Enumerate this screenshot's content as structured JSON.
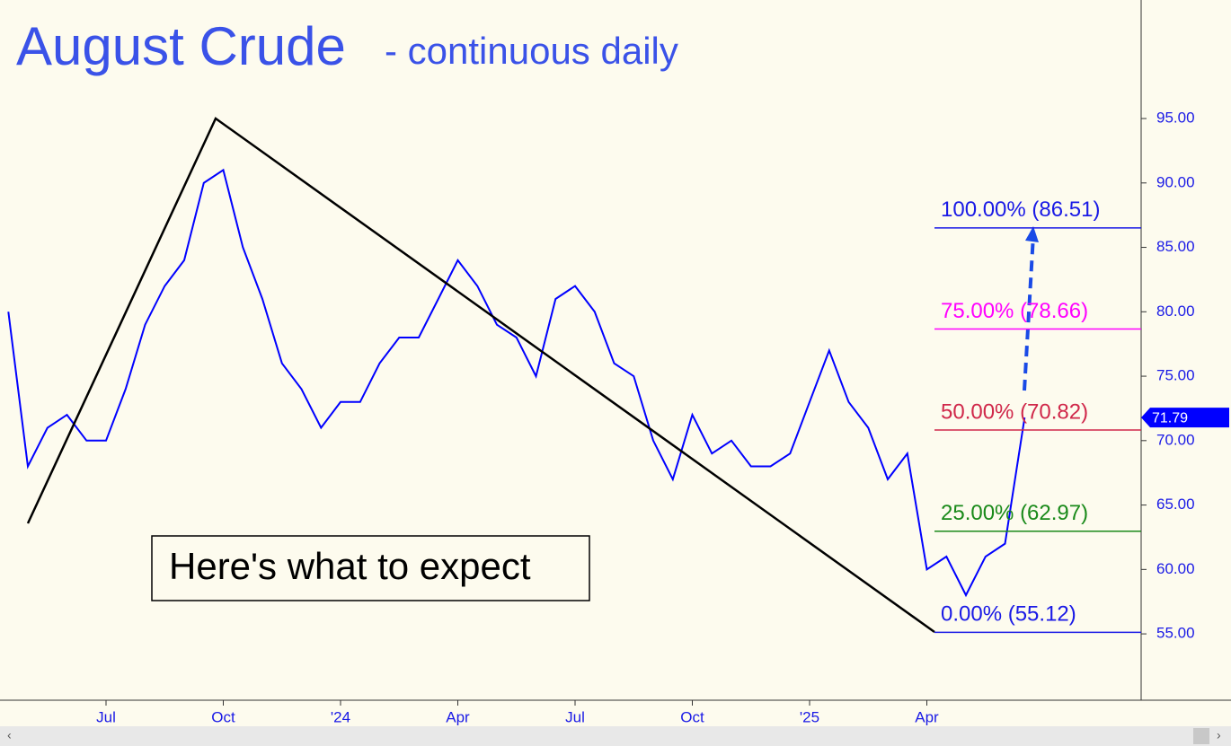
{
  "chart_data": {
    "type": "line",
    "title": "August Crude",
    "subtitle": "- continuous daily",
    "annotation": "Here's what to expect",
    "categories": [
      null,
      null,
      null,
      null,
      null,
      "Jul",
      null,
      null,
      null,
      null,
      null,
      "Oct",
      null,
      null,
      null,
      null,
      null,
      "'24",
      null,
      null,
      null,
      null,
      null,
      "Apr",
      null,
      null,
      null,
      null,
      null,
      "Jul",
      null,
      null,
      null,
      null,
      null,
      "Oct",
      null,
      null,
      null,
      null,
      null,
      "'25",
      null,
      null,
      null,
      null,
      null,
      "Apr",
      null,
      null,
      null,
      null,
      null
    ],
    "values": [
      80,
      68,
      71,
      72,
      70,
      70,
      74,
      79,
      82,
      84,
      90,
      91,
      85,
      81,
      76,
      74,
      71,
      73,
      73,
      76,
      78,
      78,
      81,
      84,
      82,
      79,
      78,
      75,
      81,
      82,
      80,
      76,
      75,
      70,
      67,
      72,
      69,
      70,
      68,
      68,
      69,
      73,
      77,
      73,
      71,
      67,
      69,
      60,
      61,
      58,
      61,
      62,
      71.79
    ],
    "color": "#0000ff",
    "ylim": [
      49.85,
      104.2
    ],
    "yticks": [
      {
        "value": 55,
        "label": "55.00"
      },
      {
        "value": 60,
        "label": "60.00"
      },
      {
        "value": 65,
        "label": "65.00"
      },
      {
        "value": 70,
        "label": "70.00"
      },
      {
        "value": 75,
        "label": "75.00"
      },
      {
        "value": 80,
        "label": "80.00"
      },
      {
        "value": 85,
        "label": "85.00"
      },
      {
        "value": 90,
        "label": "90.00"
      },
      {
        "value": 95,
        "label": "95.00"
      }
    ],
    "fib_levels": [
      {
        "label": "100.00% (86.51)",
        "value": 86.51,
        "color": "#1a1ae6"
      },
      {
        "label": "75.00% (78.66)",
        "value": 78.66,
        "color": "#ff00ff"
      },
      {
        "label": "50.00% (70.82)",
        "value": 70.82,
        "color": "#d0284a"
      },
      {
        "label": "25.00% (62.97)",
        "value": 62.97,
        "color": "#1a8a1a"
      },
      {
        "label": "0.00% (55.12)",
        "value": 55.12,
        "color": "#1a1ae6"
      }
    ]
  }
}
